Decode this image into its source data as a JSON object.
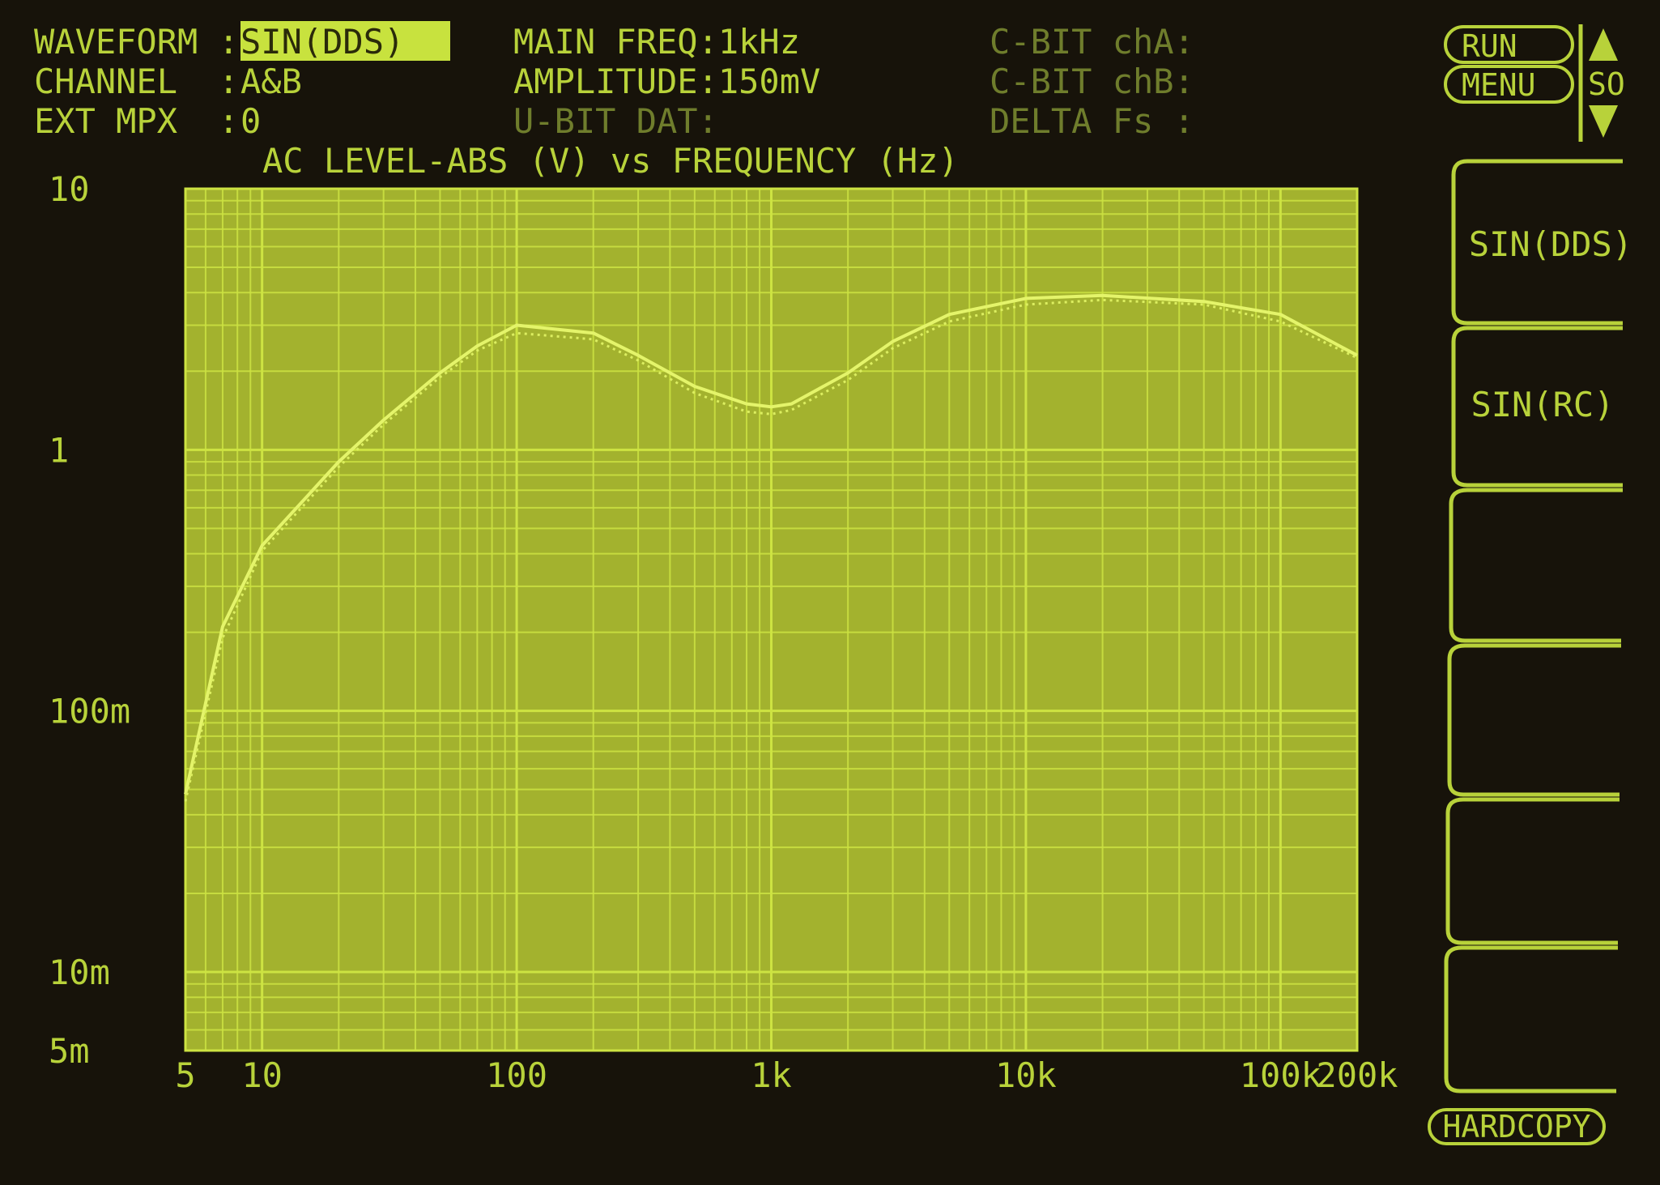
{
  "status": {
    "rows": [
      {
        "label": "WAVEFORM :",
        "value": "SIN(DDS)"
      },
      {
        "label": "CHANNEL  :",
        "value": "A&B"
      },
      {
        "label": "EXT MPX  :",
        "value": "0"
      }
    ]
  },
  "info": [
    "MAIN FREQ:1kHz",
    "AMPLITUDE:150mV",
    "U-BIT DAT:"
  ],
  "cbit": [
    "C-BIT chA:",
    "C-BIT chB:",
    "DELTA Fs :"
  ],
  "controls": {
    "run": "RUN",
    "menu": "MENU",
    "so": "SO"
  },
  "softkeys": [
    "SIN(DDS)",
    "SIN(RC)"
  ],
  "hardcopy": "HARDCOPY",
  "chart_data": {
    "type": "line",
    "title": "AC LEVEL-ABS (V) vs FREQUENCY (Hz)",
    "xscale": "log",
    "yscale": "log",
    "xlim": [
      5,
      200000
    ],
    "ylim": [
      0.005,
      10
    ],
    "xticks": [
      5,
      10,
      100,
      {
        "value": 1000,
        "label": "1k"
      },
      {
        "value": 10000,
        "label": "10k"
      },
      {
        "value": 100000,
        "label": "100k"
      },
      {
        "value": 200000,
        "label": "200k"
      }
    ],
    "yticks": [
      {
        "value": 0.005,
        "label": "5m"
      },
      {
        "value": 0.01,
        "label": "10m"
      },
      {
        "value": 0.1,
        "label": "100m"
      },
      1,
      10
    ],
    "minor_xgrid": [
      6,
      7,
      8,
      9,
      20,
      30,
      40,
      50,
      60,
      70,
      80,
      90,
      200,
      300,
      400,
      500,
      600,
      700,
      800,
      900,
      2000,
      3000,
      4000,
      5000,
      6000,
      7000,
      8000,
      9000,
      20000,
      30000,
      40000,
      50000,
      60000,
      70000,
      80000,
      90000
    ],
    "minor_ygrid": [
      0.006,
      0.007,
      0.008,
      0.009,
      0.02,
      0.03,
      0.04,
      0.05,
      0.06,
      0.07,
      0.08,
      0.09,
      0.2,
      0.3,
      0.4,
      0.5,
      0.6,
      0.7,
      0.8,
      0.9,
      2,
      3,
      4,
      5,
      6,
      7,
      8,
      9
    ],
    "grid": true,
    "plot_color": "#a3b22e",
    "grid_color": "#cde342",
    "x": [
      5,
      7,
      10,
      20,
      30,
      50,
      70,
      100,
      200,
      300,
      500,
      800,
      1000,
      1200,
      2000,
      3000,
      5000,
      10000,
      20000,
      50000,
      100000,
      200000
    ],
    "series": [
      {
        "color": "#e4f46a",
        "line_style": "solid",
        "values": [
          0.048,
          0.21,
          0.43,
          0.9,
          1.3,
          1.97,
          2.5,
          3.0,
          2.8,
          2.3,
          1.75,
          1.5,
          1.46,
          1.5,
          1.97,
          2.6,
          3.3,
          3.8,
          3.9,
          3.7,
          3.3,
          2.3
        ]
      },
      {
        "color": "#dcee60",
        "line_style": "dotted",
        "values": [
          0.045,
          0.19,
          0.41,
          0.86,
          1.25,
          1.9,
          2.4,
          2.8,
          2.65,
          2.2,
          1.65,
          1.4,
          1.37,
          1.42,
          1.85,
          2.45,
          3.1,
          3.6,
          3.75,
          3.6,
          3.1,
          2.25
        ]
      }
    ]
  }
}
